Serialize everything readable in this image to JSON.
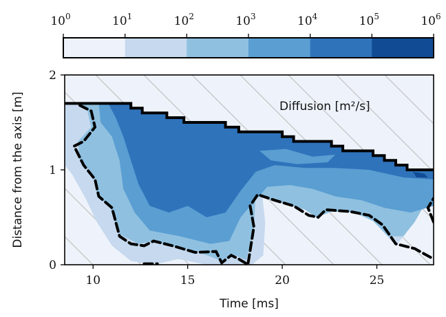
{
  "chart_data": {
    "type": "heatmap",
    "subtype": "filled-contour",
    "xlabel": "Time [ms]",
    "ylabel": "Distance from the axis [m]",
    "xlim": [
      8.5,
      28
    ],
    "ylim": [
      0,
      2
    ],
    "x_ticks": [
      {
        "value": 10,
        "label": "10"
      },
      {
        "value": 15,
        "label": "15"
      },
      {
        "value": 20,
        "label": "20"
      },
      {
        "value": 25,
        "label": "25"
      }
    ],
    "y_ticks": [
      {
        "value": 0,
        "label": "0"
      },
      {
        "value": 1,
        "label": "1"
      },
      {
        "value": 2,
        "label": "2"
      }
    ],
    "annotation": {
      "text": "Diffusion [m²/s]"
    },
    "colorbar": {
      "position": "top",
      "scale": "log",
      "tick_labels": [
        {
          "base": "10",
          "exp": "0"
        },
        {
          "base": "10",
          "exp": "1"
        },
        {
          "base": "10",
          "exp": "2"
        },
        {
          "base": "10",
          "exp": "3"
        },
        {
          "base": "10",
          "exp": "4"
        },
        {
          "base": "10",
          "exp": "5"
        },
        {
          "base": "10",
          "exp": "6"
        }
      ],
      "levels": [
        {
          "from": 1,
          "to": 10,
          "color": "#eef3fb"
        },
        {
          "from": 10,
          "to": 100,
          "color": "#c6d9ee"
        },
        {
          "from": 100,
          "to": 1000,
          "color": "#8fc0e0"
        },
        {
          "from": 1000,
          "to": 10000,
          "color": "#5a9ed2"
        },
        {
          "from": 10000,
          "to": 100000,
          "color": "#2f73bb"
        },
        {
          "from": 100000,
          "to": 1000000,
          "color": "#114b94"
        }
      ]
    },
    "upper_boundary": [
      [
        8.5,
        1.7
      ],
      [
        12.0,
        1.7
      ],
      [
        12.0,
        1.65
      ],
      [
        12.6,
        1.65
      ],
      [
        12.6,
        1.6
      ],
      [
        13.9,
        1.6
      ],
      [
        13.9,
        1.55
      ],
      [
        14.8,
        1.55
      ],
      [
        14.8,
        1.5
      ],
      [
        17.0,
        1.5
      ],
      [
        17.0,
        1.45
      ],
      [
        17.7,
        1.45
      ],
      [
        17.7,
        1.4
      ],
      [
        20.0,
        1.4
      ],
      [
        20.0,
        1.35
      ],
      [
        20.6,
        1.35
      ],
      [
        20.6,
        1.3
      ],
      [
        22.6,
        1.3
      ],
      [
        22.6,
        1.25
      ],
      [
        23.2,
        1.25
      ],
      [
        23.2,
        1.2
      ],
      [
        24.8,
        1.2
      ],
      [
        24.8,
        1.15
      ],
      [
        25.4,
        1.15
      ],
      [
        25.4,
        1.1
      ],
      [
        26.0,
        1.1
      ],
      [
        26.0,
        1.05
      ],
      [
        26.6,
        1.05
      ],
      [
        26.6,
        1.0
      ],
      [
        28.0,
        1.0
      ]
    ],
    "threshold_contour": {
      "style": "dashed",
      "level": 100,
      "segments": [
        [
          [
            9.3,
            1.68
          ],
          [
            9.9,
            1.62
          ],
          [
            10.1,
            1.45
          ],
          [
            9.5,
            1.3
          ],
          [
            9.0,
            1.25
          ],
          [
            9.5,
            1.05
          ],
          [
            10.1,
            0.9
          ],
          [
            10.3,
            0.72
          ],
          [
            11.0,
            0.6
          ],
          [
            11.4,
            0.3
          ],
          [
            12.0,
            0.22
          ],
          [
            12.7,
            0.2
          ],
          [
            13.2,
            0.25
          ],
          [
            14.2,
            0.2
          ],
          [
            15.4,
            0.13
          ],
          [
            16.5,
            0.14
          ],
          [
            16.8,
            0.02
          ],
          [
            17.3,
            0.1
          ],
          [
            17.7,
            0.06
          ],
          [
            18.2,
            0.0
          ]
        ],
        [
          [
            12.7,
            0.01
          ],
          [
            13.4,
            0.01
          ]
        ],
        [
          [
            18.2,
            0.02
          ],
          [
            18.5,
            0.4
          ],
          [
            18.3,
            0.62
          ],
          [
            18.7,
            0.74
          ],
          [
            19.6,
            0.68
          ],
          [
            20.6,
            0.62
          ],
          [
            21.4,
            0.52
          ],
          [
            21.9,
            0.5
          ],
          [
            22.3,
            0.58
          ],
          [
            23.6,
            0.56
          ],
          [
            24.6,
            0.52
          ],
          [
            25.3,
            0.42
          ],
          [
            26.0,
            0.22
          ],
          [
            27.0,
            0.17
          ],
          [
            28.0,
            0.06
          ]
        ],
        [
          [
            28.0,
            0.45
          ],
          [
            27.7,
            0.6
          ],
          [
            28.0,
            0.7
          ]
        ]
      ]
    }
  }
}
